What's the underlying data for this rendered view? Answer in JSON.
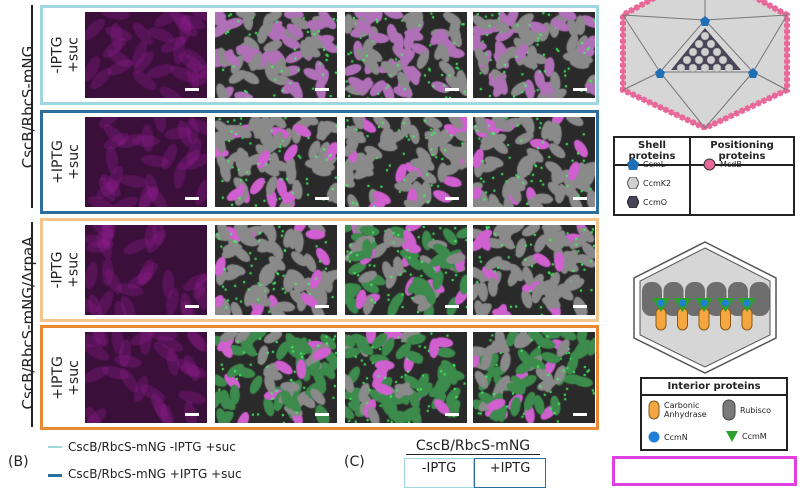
{
  "strain_labels": [
    "CscB/RbcS-mNG",
    "CscB/RbcS-mNG/ΔrpaA"
  ],
  "rows": [
    {
      "condition": "-IPTG\n+suc",
      "color": "#9fd6df",
      "palette": "magenta-dim"
    },
    {
      "condition": "+IPTG\n+suc",
      "color": "#2c6e9e",
      "palette": "mixed"
    },
    {
      "condition": "-IPTG\n+suc",
      "color": "#f4c48a",
      "palette": "mixed"
    },
    {
      "condition": "+IPTG\n+suc",
      "color": "#ea8a32",
      "palette": "green"
    }
  ],
  "legend_shell": {
    "title_shell": "Shell proteins",
    "title_pos": "Positioning proteins",
    "items": [
      {
        "label": "CcmL",
        "color": "#1f6fb5"
      },
      {
        "label": "CcmK2",
        "color": "#d0d0d0"
      },
      {
        "label": "CcmO",
        "color": "#4a4458"
      },
      {
        "label": "McdB",
        "color": "#e8689a"
      }
    ]
  },
  "legend_interior": {
    "title": "Interior proteins",
    "items": [
      {
        "label": "Carbonic Anhydrase",
        "color": "#f4a640"
      },
      {
        "label": "Rubisco",
        "color": "#7a7a7a"
      },
      {
        "label": "CcmN",
        "color": "#1f7fd6"
      },
      {
        "label": "CcmM",
        "color": "#2ca02c"
      }
    ]
  },
  "panel_b": {
    "label": "(B)",
    "series": [
      {
        "name": "CscB/RbcS-mNG -IPTG +suc",
        "color": "#9fd6df"
      },
      {
        "name": "CscB/RbcS-mNG +IPTG +suc",
        "color": "#2c6e9e"
      }
    ]
  },
  "panel_c": {
    "label": "(C)",
    "header": "CscB/RbcS-mNG",
    "cols": [
      "-IPTG",
      "+IPTG"
    ]
  },
  "accent_magenta": "#e040e0"
}
